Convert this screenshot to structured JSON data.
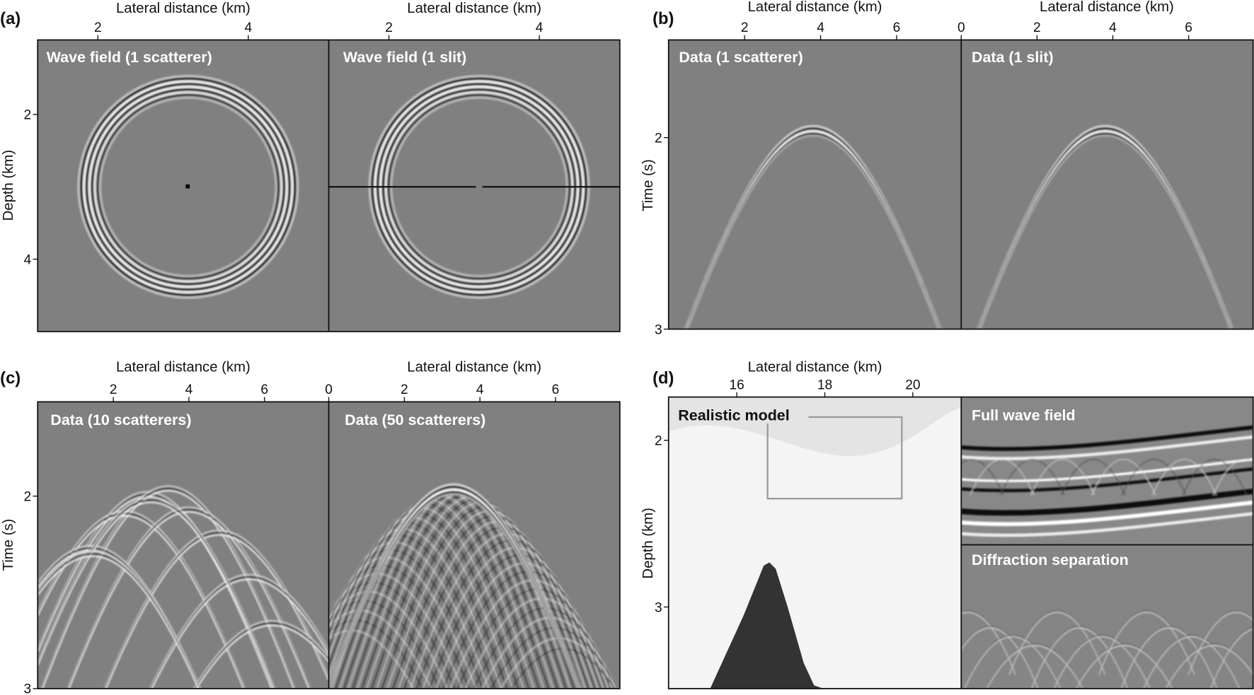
{
  "figure_labels": {
    "a": "(a)",
    "b": "(b)",
    "c": "(c)",
    "d": "(d)"
  },
  "colors": {
    "background_gray": "#808080",
    "salt": "#333333",
    "frame": "#111111"
  },
  "chart_data": [
    {
      "id": "a",
      "type": "heatmap",
      "xlabel": "Lateral distance (km)",
      "ylabel": "Depth (km)",
      "xlim": [
        1.2,
        5.07
      ],
      "ylim": [
        0.97,
        5.0
      ],
      "xticks": [
        2,
        4
      ],
      "yticks": [
        2,
        4
      ],
      "panels": [
        {
          "title": "Wave field (1 scatterer)",
          "scatterer": [
            3.2,
            3.0
          ],
          "wavefront_radius_km": 1.4
        },
        {
          "title": "Wave field (1 slit)",
          "slit_depth": 3.0,
          "slit_gap_x": 3.2,
          "wavefront_radius_km": 1.4
        }
      ]
    },
    {
      "id": "b",
      "type": "heatmap",
      "xlabel": "Lateral distance (km)",
      "ylabel": "Time (s)",
      "xlim": [
        0,
        7.7
      ],
      "ylim": [
        1.49,
        3.0
      ],
      "xticks_left": [
        2,
        4,
        6
      ],
      "xticks_right": [
        0,
        2,
        4,
        6
      ],
      "yticks": [
        2,
        3
      ],
      "panels": [
        {
          "title": "Data (1 scatterer)",
          "apex": [
            3.8,
            1.96
          ]
        },
        {
          "title": "Data (1 slit)",
          "apex": [
            3.8,
            1.96
          ]
        }
      ]
    },
    {
      "id": "c",
      "type": "heatmap",
      "xlabel": "Lateral distance (km)",
      "ylabel": "Time (s)",
      "xlim": [
        0,
        7.7
      ],
      "ylim": [
        1.51,
        3.0
      ],
      "xticks_left": [
        2,
        4,
        6
      ],
      "xticks_right": [
        0,
        2,
        4,
        6
      ],
      "yticks": [
        2,
        3
      ],
      "panels": [
        {
          "title": "Data (10 scatterers)",
          "apexes": [
            [
              2.9,
              1.99
            ],
            [
              3.45,
              1.96
            ],
            [
              2.3,
              2.09
            ],
            [
              4.0,
              2.07
            ],
            [
              4.8,
              2.19
            ],
            [
              1.4,
              2.27
            ],
            [
              5.6,
              2.42
            ],
            [
              6.2,
              2.66
            ],
            [
              3.0,
              2.02
            ],
            [
              1.45,
              2.3
            ]
          ]
        },
        {
          "title": "Data (50 scatterers)",
          "apex": [
            3.3,
            1.96
          ]
        }
      ]
    },
    {
      "id": "d",
      "type": "heatmap",
      "xlabel": "Lateral distance (km)",
      "ylabel": "Depth (km)",
      "xlim": [
        14.45,
        21.1
      ],
      "ylim": [
        1.74,
        3.49
      ],
      "xticks": [
        16,
        18,
        20
      ],
      "yticks": [
        2,
        3
      ],
      "panels": [
        {
          "title": "Realistic model",
          "zoom_box_x": [
            16.7,
            19.75
          ],
          "zoom_box_depth": [
            1.86,
            2.35
          ]
        },
        {
          "title": "Full wave field"
        },
        {
          "title": "Diffraction separation"
        }
      ]
    }
  ]
}
